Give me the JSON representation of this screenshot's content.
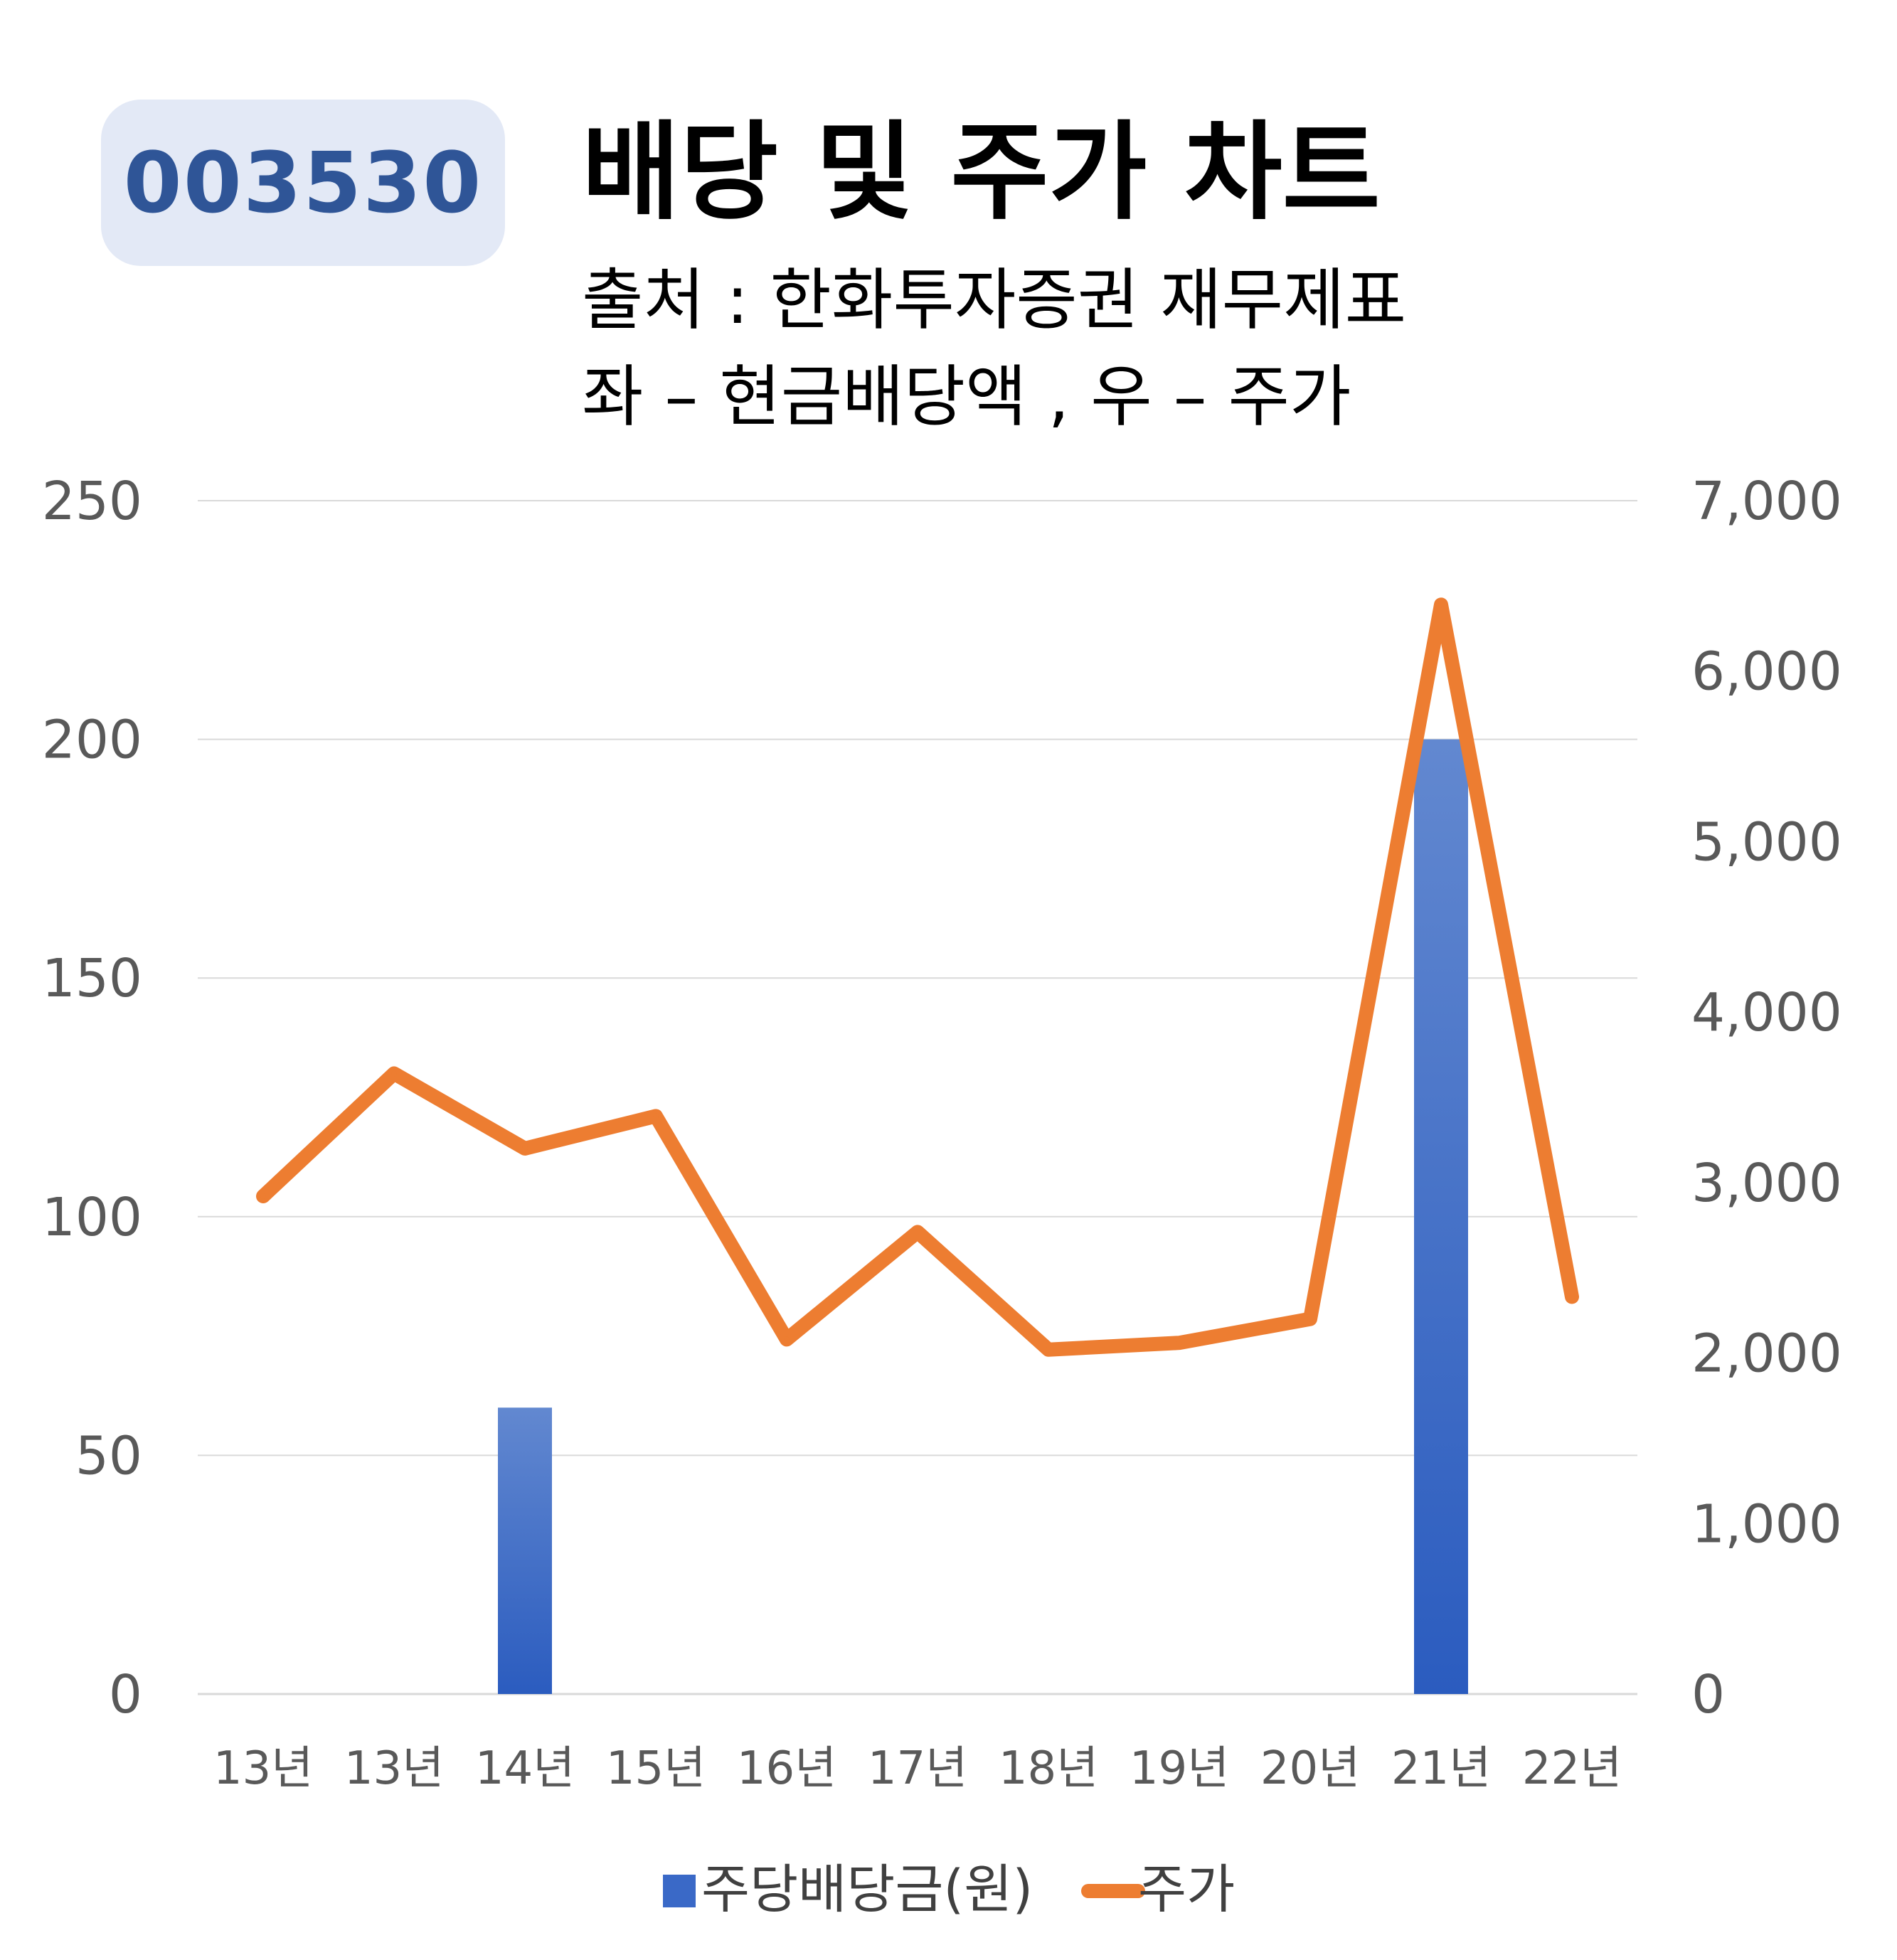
{
  "header": {
    "code": "003530",
    "title": "배당 및 주가 차트",
    "subtitle_line1": "출처 : 한화투자증권 재무제표",
    "subtitle_line2": "좌 – 현금배당액 , 우 – 주가"
  },
  "colors": {
    "bar": "#3a69c7",
    "line": "#ed7d31",
    "grid": "#d9d9d9",
    "badge_bg": "#e3e9f6",
    "badge_text": "#2f5597"
  },
  "chart_data": {
    "type": "bar",
    "categories": [
      "13년",
      "13년",
      "14년",
      "15년",
      "16년",
      "17년",
      "18년",
      "19년",
      "20년",
      "21년",
      "22년"
    ],
    "series": [
      {
        "name": "주당배당금(원)",
        "type": "bar",
        "axis": "left",
        "values": [
          0,
          0,
          60,
          0,
          0,
          0,
          0,
          0,
          0,
          200,
          0
        ]
      },
      {
        "name": "주가",
        "type": "line",
        "axis": "right",
        "values": [
          2920,
          3640,
          3200,
          3390,
          2080,
          2710,
          2020,
          2060,
          2200,
          6390,
          2330
        ]
      }
    ],
    "y_left": {
      "min": 0,
      "max": 250,
      "ticks": [
        "0",
        "50",
        "100",
        "150",
        "200",
        "250"
      ]
    },
    "y_right": {
      "min": 0,
      "max": 7000,
      "ticks": [
        "0",
        "1,000",
        "2,000",
        "3,000",
        "4,000",
        "5,000",
        "6,000",
        "7,000"
      ]
    },
    "grid": true,
    "legend_position": "bottom"
  }
}
